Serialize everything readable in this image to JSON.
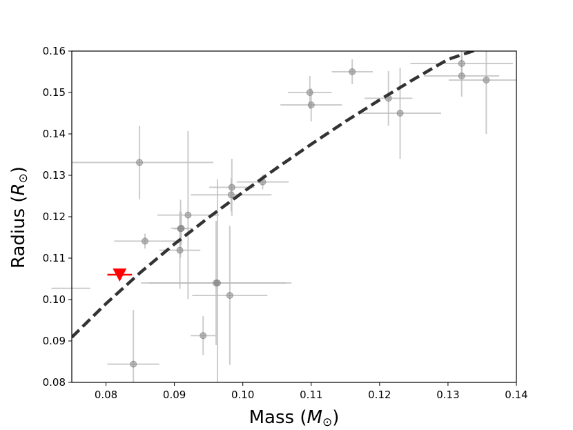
{
  "chart_data": {
    "type": "scatter",
    "title": "",
    "xlabel": "Mass",
    "xlabel_symbol": "M",
    "xlabel_subscript": "⊙",
    "ylabel": "Radius",
    "ylabel_symbol": "R",
    "ylabel_subscript": "⊙",
    "xlim": [
      0.075,
      0.14
    ],
    "ylim": [
      0.08,
      0.16
    ],
    "xticks": [
      0.08,
      0.09,
      0.1,
      0.11,
      0.12,
      0.13,
      0.14
    ],
    "xtick_labels": [
      "0.08",
      "0.09",
      "0.10",
      "0.11",
      "0.12",
      "0.13",
      "0.14"
    ],
    "yticks": [
      0.08,
      0.09,
      0.1,
      0.11,
      0.12,
      0.13,
      0.14,
      0.15,
      0.16
    ],
    "ytick_labels": [
      "0.08",
      "0.09",
      "0.10",
      "0.11",
      "0.12",
      "0.13",
      "0.14",
      "0.15",
      "0.16"
    ],
    "grid": false,
    "colors": {
      "points": "#808080",
      "errorbars": "#bbbbbb",
      "highlight": "#ff0000",
      "model_line": "#333333"
    },
    "comparison_points": [
      {
        "x": 0.0849,
        "y": 0.1331,
        "xerr": 0.0108,
        "yerr": 0.0089
      },
      {
        "x": 0.0857,
        "y": 0.1141,
        "xerr": 0.0045,
        "yerr": 0.0018
      },
      {
        "x": 0.084,
        "y": 0.0844,
        "xerr": 0.0038,
        "yerr": 0.0131
      },
      {
        "x": 0.0909,
        "y": 0.1171,
        "xerr": 0.001,
        "yerr": 0.007
      },
      {
        "x": 0.091,
        "y": 0.1172,
        "xerr": 0.0015,
        "yerr": 0.004
      },
      {
        "x": 0.0908,
        "y": 0.1119,
        "xerr": 0.003,
        "yerr": 0.0093
      },
      {
        "x": 0.092,
        "y": 0.1204,
        "xerr": 0.0045,
        "yerr": 0.0203
      },
      {
        "x": 0.0942,
        "y": 0.0913,
        "xerr": 0.0018,
        "yerr": 0.0047
      },
      {
        "x": 0.0961,
        "y": 0.104,
        "xerr": 0.011,
        "yerr": 0.015
      },
      {
        "x": 0.0963,
        "y": 0.104,
        "xerr": 0.01,
        "yerr": 0.025
      },
      {
        "x": 0.0981,
        "y": 0.101,
        "xerr": 0.0055,
        "yerr": 0.0168
      },
      {
        "x": 0.0984,
        "y": 0.1271,
        "xerr": 0.0033,
        "yerr": 0.0069
      },
      {
        "x": 0.0983,
        "y": 0.1253,
        "xerr": 0.0059,
        "yerr": 0.004
      },
      {
        "x": 0.1029,
        "y": 0.1284,
        "xerr": 0.0038,
        "yerr": 0.0018
      },
      {
        "x": 0.1098,
        "y": 0.15,
        "xerr": 0.0032,
        "yerr": 0.004
      },
      {
        "x": 0.11,
        "y": 0.147,
        "xerr": 0.0045,
        "yerr": 0.004
      },
      {
        "x": 0.116,
        "y": 0.155,
        "xerr": 0.003,
        "yerr": 0.003
      },
      {
        "x": 0.1213,
        "y": 0.1486,
        "xerr": 0.0035,
        "yerr": 0.0066
      },
      {
        "x": 0.123,
        "y": 0.145,
        "xerr": 0.006,
        "yerr": 0.011
      },
      {
        "x": 0.132,
        "y": 0.154,
        "xerr": 0.0055,
        "yerr": 0.005
      },
      {
        "x": 0.132,
        "y": 0.157,
        "xerr": 0.0075,
        "yerr": 0.003
      },
      {
        "x": 0.1356,
        "y": 0.153,
        "xerr": 0.0055,
        "yerr": 0.013
      }
    ],
    "partial_offscreen_errorbars": [
      {
        "y": 0.1027,
        "x_from": 0.072,
        "x_to": 0.0777
      }
    ],
    "highlight_point": {
      "x": 0.082,
      "y": 0.106,
      "xerr": 0.0018,
      "yerr": 0.0007,
      "marker": "triangle-down"
    },
    "model_line": {
      "style": "dashed",
      "x": [
        0.075,
        0.08,
        0.085,
        0.09,
        0.095,
        0.1,
        0.105,
        0.11,
        0.115,
        0.12,
        0.125,
        0.13,
        0.134
      ],
      "y": [
        0.0909,
        0.099,
        0.1065,
        0.1134,
        0.1198,
        0.1259,
        0.1318,
        0.1375,
        0.143,
        0.1482,
        0.1532,
        0.158,
        0.1602
      ]
    }
  }
}
